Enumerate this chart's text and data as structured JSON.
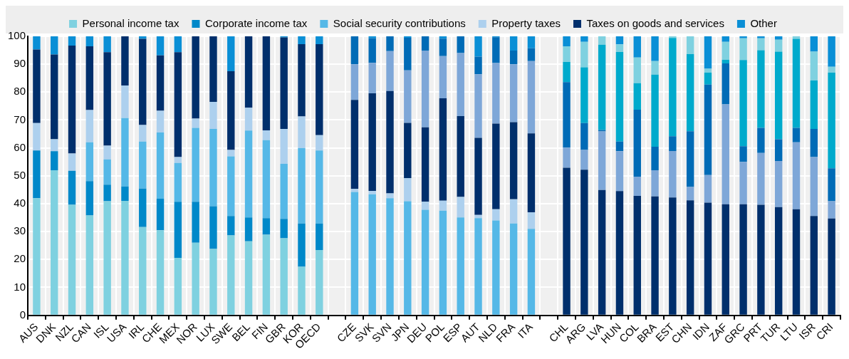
{
  "chart_data": {
    "type": "bar",
    "stacked": true,
    "legend": "top",
    "grid": true,
    "categories": [
      "AUS",
      "DNK",
      "NZL",
      "CAN",
      "ISL",
      "USA",
      "IRL",
      "CHE",
      "MEX",
      "NOR",
      "LUX",
      "SWE",
      "BEL",
      "FIN",
      "GBR",
      "KOR",
      "OECD",
      null,
      "CZE",
      "SVK",
      "SVN",
      "JPN",
      "DEU",
      "POL",
      "ESP",
      "AUT",
      "NLD",
      "FRA",
      "ITA",
      null,
      "CHL",
      "ARG",
      "LVA",
      "HUN",
      "COL",
      "BRA",
      "EST",
      "CHN",
      "IDN",
      "ZAF",
      "GRC",
      "PRT",
      "TUR",
      "LTU",
      "ISR",
      "CRI"
    ],
    "ylim": [
      0,
      100
    ],
    "yticks": [
      0,
      10,
      20,
      30,
      40,
      50,
      60,
      70,
      80,
      90,
      100
    ],
    "series": [
      {
        "name": "Personal income tax",
        "color": "#7fd1e0",
        "values": [
          42.0,
          52.0,
          39.6,
          35.8,
          40.9,
          41.0,
          31.6,
          30.5,
          20.6,
          26.0,
          23.8,
          28.6,
          26.5,
          28.9,
          27.6,
          17.4,
          23.4,
          null,
          null,
          null,
          null,
          null,
          null,
          null,
          null,
          null,
          null,
          null,
          null,
          null,
          null,
          null,
          null,
          null,
          null,
          null,
          null,
          null,
          null,
          null,
          null,
          null,
          null,
          null,
          null,
          null
        ]
      },
      {
        "name": "Corporate income tax",
        "color": "#0088c9",
        "values": [
          17.1,
          6.8,
          12.2,
          12.3,
          5.9,
          5.2,
          13.8,
          11.3,
          20.1,
          14.7,
          15.3,
          7.0,
          8.6,
          5.9,
          7.0,
          15.5,
          9.5,
          null,
          null,
          null,
          null,
          null,
          null,
          null,
          null,
          null,
          null,
          null,
          null,
          null,
          null,
          null,
          null,
          null,
          null,
          null,
          null,
          null,
          null,
          null,
          null,
          null,
          null,
          null,
          null,
          null
        ]
      },
      {
        "name": "Social security contributions",
        "color": "#55b8e7",
        "values": [
          0,
          0,
          0,
          13.9,
          9.1,
          24.5,
          16.9,
          23.7,
          13.9,
          26.5,
          27.7,
          21.4,
          31.1,
          28.0,
          19.7,
          27.0,
          26.2,
          null,
          null,
          null,
          null,
          null,
          null,
          null,
          null,
          null,
          null,
          null,
          null,
          null,
          null,
          null,
          null,
          null,
          null,
          null,
          null,
          null,
          null,
          null,
          null,
          null,
          null,
          null,
          null,
          null
        ]
      },
      {
        "name": "Property taxes",
        "color": "#add0ee",
        "values": [
          9.8,
          4.3,
          6.2,
          11.6,
          4.9,
          11.7,
          5.9,
          7.8,
          2.1,
          3.3,
          9.7,
          2.3,
          8.2,
          3.5,
          12.5,
          11.4,
          5.5,
          null,
          null,
          null,
          null,
          null,
          null,
          null,
          null,
          null,
          null,
          null,
          null,
          null,
          null,
          null,
          null,
          null,
          null,
          null,
          null,
          null,
          null,
          null,
          null,
          null,
          null,
          null,
          null,
          null
        ]
      },
      {
        "name": "Taxes on goods and services",
        "color": "#002f6c",
        "values": [
          26.4,
          30.4,
          38.7,
          22.8,
          33.5,
          17.6,
          30.9,
          19.9,
          37.6,
          29.5,
          23.5,
          28.2,
          25.6,
          33.7,
          32.8,
          25.9,
          32.6,
          null,
          null,
          null,
          null,
          null,
          null,
          null,
          null,
          null,
          null,
          null,
          null,
          null,
          null,
          null,
          null,
          null,
          null,
          null,
          null,
          null,
          null,
          null,
          null,
          null,
          null,
          null,
          null,
          null
        ]
      },
      {
        "name": "Other",
        "color": "#0a8fd6",
        "values": [
          4.7,
          6.5,
          3.3,
          3.6,
          5.7,
          0,
          0.9,
          6.8,
          5.7,
          0,
          0,
          12.5,
          0,
          0,
          0.4,
          2.8,
          2.8,
          null,
          null,
          null,
          null,
          null,
          null,
          null,
          null,
          null,
          null,
          null,
          null,
          null,
          null,
          null,
          null,
          null,
          null,
          null,
          null,
          null,
          null,
          null,
          null,
          null,
          null,
          null,
          null,
          null
        ]
      },
      {
        "color": "#55b8e7",
        "values": [
          null,
          null,
          null,
          null,
          null,
          null,
          null,
          null,
          null,
          null,
          null,
          null,
          null,
          null,
          null,
          null,
          null,
          null,
          44.2,
          43.4,
          42.0,
          40.9,
          37.8,
          37.5,
          35.1,
          34.8,
          34.0,
          32.9,
          31.0,
          null,
          null,
          null,
          null,
          null,
          null,
          null,
          null,
          null,
          null,
          null,
          null,
          null,
          null,
          null,
          null,
          null
        ]
      },
      {
        "color": "#add0ee",
        "values": [
          null,
          null,
          null,
          null,
          null,
          null,
          null,
          null,
          null,
          null,
          null,
          null,
          null,
          null,
          null,
          null,
          null,
          null,
          1.1,
          1.2,
          1.7,
          8.3,
          2.9,
          3.6,
          7.3,
          1.2,
          4.0,
          8.7,
          5.9,
          null,
          null,
          null,
          null,
          null,
          null,
          null,
          null,
          null,
          null,
          null,
          null,
          null,
          null,
          null,
          null,
          null
        ]
      },
      {
        "color": "#002f6c",
        "values": [
          null,
          null,
          null,
          null,
          null,
          null,
          null,
          null,
          null,
          null,
          null,
          null,
          null,
          null,
          null,
          null,
          null,
          null,
          31.9,
          35.0,
          36.7,
          19.8,
          26.7,
          36.7,
          29.0,
          27.6,
          30.7,
          27.6,
          28.3,
          null,
          null,
          null,
          null,
          null,
          null,
          null,
          null,
          null,
          null,
          null,
          null,
          null,
          null,
          null,
          null,
          null
        ]
      },
      {
        "color": "#7ea7d8",
        "values": [
          null,
          null,
          null,
          null,
          null,
          null,
          null,
          null,
          null,
          null,
          null,
          null,
          null,
          null,
          null,
          null,
          null,
          null,
          12.8,
          10.9,
          14.3,
          18.8,
          27.5,
          15.1,
          22.6,
          22.8,
          21.7,
          20.8,
          25.9,
          null,
          null,
          null,
          null,
          null,
          null,
          null,
          null,
          null,
          null,
          null,
          null,
          null,
          null,
          null,
          null,
          null
        ]
      },
      {
        "color": "#006bb6",
        "values": [
          null,
          null,
          null,
          null,
          null,
          null,
          null,
          null,
          null,
          null,
          null,
          null,
          null,
          null,
          null,
          null,
          null,
          null,
          10.0,
          8.8,
          5.3,
          11.7,
          5.1,
          6.3,
          6.0,
          6.3,
          9.3,
          4.9,
          4.6,
          null,
          null,
          null,
          null,
          null,
          null,
          null,
          null,
          null,
          null,
          null,
          null,
          null,
          null,
          null,
          null,
          null
        ]
      },
      {
        "color": "#0a8fd6",
        "values": [
          null,
          null,
          null,
          null,
          null,
          null,
          null,
          null,
          null,
          null,
          null,
          null,
          null,
          null,
          null,
          null,
          null,
          null,
          0,
          0.7,
          0,
          0.5,
          0,
          0.8,
          0,
          7.3,
          0.3,
          5.1,
          4.3,
          null,
          null,
          null,
          null,
          null,
          null,
          null,
          null,
          null,
          null,
          null,
          null,
          null,
          null,
          null,
          null,
          null
        ]
      },
      {
        "color": "#002f6c",
        "values": [
          null,
          null,
          null,
          null,
          null,
          null,
          null,
          null,
          null,
          null,
          null,
          null,
          null,
          null,
          null,
          null,
          null,
          null,
          null,
          null,
          null,
          null,
          null,
          null,
          null,
          null,
          null,
          null,
          null,
          null,
          52.9,
          52.2,
          44.9,
          44.5,
          42.8,
          42.6,
          42.2,
          41.2,
          40.4,
          39.8,
          39.8,
          39.6,
          38.8,
          38.0,
          35.6,
          34.7
        ]
      },
      {
        "color": "#7ea7d8",
        "values": [
          null,
          null,
          null,
          null,
          null,
          null,
          null,
          null,
          null,
          null,
          null,
          null,
          null,
          null,
          null,
          null,
          null,
          null,
          null,
          null,
          null,
          null,
          null,
          null,
          null,
          null,
          null,
          null,
          null,
          null,
          7.2,
          7.1,
          21.0,
          14.3,
          6.9,
          9.4,
          16.7,
          4.8,
          9.9,
          35.8,
          15.2,
          18.6,
          16.5,
          24.0,
          21.1,
          6.2
        ]
      },
      {
        "color": "#006bb6",
        "values": [
          null,
          null,
          null,
          null,
          null,
          null,
          null,
          null,
          null,
          null,
          null,
          null,
          null,
          null,
          null,
          null,
          null,
          null,
          null,
          null,
          null,
          null,
          null,
          null,
          null,
          null,
          null,
          null,
          null,
          null,
          23.5,
          9.6,
          0.5,
          3.5,
          24.0,
          8.4,
          5.3,
          20.0,
          32.4,
          14.7,
          5.6,
          9.0,
          7.8,
          5.2,
          10.1,
          11.8
        ]
      },
      {
        "color": "#00aacc",
        "values": [
          null,
          null,
          null,
          null,
          null,
          null,
          null,
          null,
          null,
          null,
          null,
          null,
          null,
          null,
          null,
          null,
          null,
          null,
          null,
          null,
          null,
          null,
          null,
          null,
          null,
          null,
          null,
          null,
          null,
          null,
          7.2,
          20.0,
          30.6,
          32.1,
          9.5,
          25.9,
          35.2,
          27.6,
          4.3,
          1.3,
          30.9,
          27.8,
          31.4,
          31.9,
          17.4,
          34.3
        ]
      },
      {
        "color": "#7fd1e0",
        "values": [
          null,
          null,
          null,
          null,
          null,
          null,
          null,
          null,
          null,
          null,
          null,
          null,
          null,
          null,
          null,
          null,
          null,
          null,
          null,
          null,
          null,
          null,
          null,
          null,
          null,
          null,
          null,
          null,
          null,
          null,
          5.6,
          9.1,
          3.0,
          2.7,
          9.2,
          4.8,
          0.6,
          6.4,
          1.4,
          6.4,
          7.8,
          4.3,
          4.3,
          0.9,
          10.3,
          2.1
        ]
      },
      {
        "color": "#0a8fd6",
        "values": [
          null,
          null,
          null,
          null,
          null,
          null,
          null,
          null,
          null,
          null,
          null,
          null,
          null,
          null,
          null,
          null,
          null,
          null,
          null,
          null,
          null,
          null,
          null,
          null,
          null,
          null,
          null,
          null,
          null,
          null,
          3.6,
          2.0,
          0,
          2.9,
          7.6,
          8.9,
          0,
          0,
          11.6,
          2.0,
          0.7,
          0.7,
          1.2,
          0,
          5.5,
          10.9
        ]
      }
    ]
  }
}
